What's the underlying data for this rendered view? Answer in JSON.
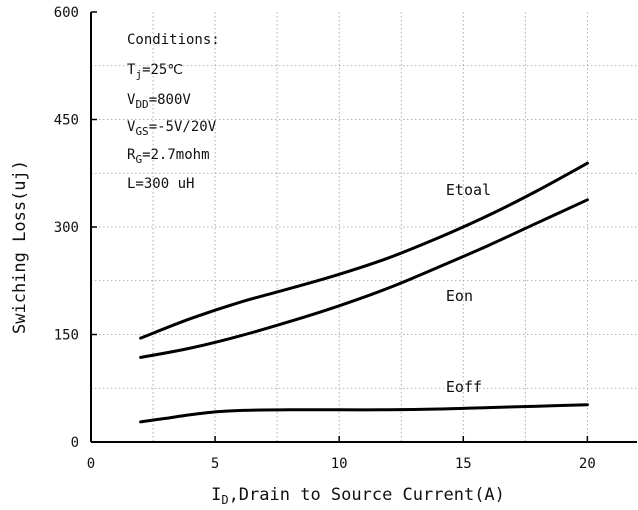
{
  "chart_data": {
    "type": "line",
    "title": "",
    "xlabel_prefix": "I",
    "xlabel_sub": "D",
    "xlabel_rest": ",Drain to Source Current(A)",
    "ylabel": "Swiching Loss(uj)",
    "xlim": [
      0,
      22
    ],
    "ylim": [
      0,
      600
    ],
    "xticks": [
      0,
      5,
      10,
      15,
      20
    ],
    "yticks": [
      0,
      150,
      300,
      450,
      600
    ],
    "grid": true,
    "series": [
      {
        "name": "Etoal",
        "x": [
          2,
          4,
          6,
          8,
          10,
          12,
          14,
          16,
          18,
          20
        ],
        "y": [
          145,
          172,
          195,
          214,
          234,
          257,
          285,
          316,
          351,
          389
        ]
      },
      {
        "name": "Eon",
        "x": [
          2,
          4,
          6,
          8,
          10,
          12,
          14,
          16,
          18,
          20
        ],
        "y": [
          118,
          131,
          148,
          168,
          190,
          215,
          244,
          274,
          306,
          338
        ]
      },
      {
        "name": "Eoff",
        "x": [
          2,
          3,
          4,
          5,
          6,
          8,
          10,
          12,
          14,
          16,
          18,
          20
        ],
        "y": [
          28,
          33,
          38,
          42,
          44,
          45,
          45,
          45,
          46,
          48,
          50,
          52
        ]
      }
    ],
    "series_label_values": [
      {
        "series": "Etoal",
        "x": 14.3,
        "y": 345
      },
      {
        "series": "Eon",
        "x": 14.3,
        "y": 197
      },
      {
        "series": "Eoff",
        "x": 14.3,
        "y": 70
      }
    ],
    "conditions": {
      "heading": "Conditions:",
      "lines": [
        {
          "main": "T",
          "sub": "j",
          "rest": "=25℃"
        },
        {
          "main": "V",
          "sub": "DD",
          "rest": "=800V"
        },
        {
          "main": "V",
          "sub": "GS",
          "rest": "=-5V/20V"
        },
        {
          "main": "R",
          "sub": "G",
          "rest": "=2.7mohm"
        },
        {
          "main": "L=300 uH",
          "sub": "",
          "rest": ""
        }
      ]
    },
    "colors": {
      "line": "#000000",
      "axis": "#000000",
      "grid": "#9a9a9a"
    }
  }
}
